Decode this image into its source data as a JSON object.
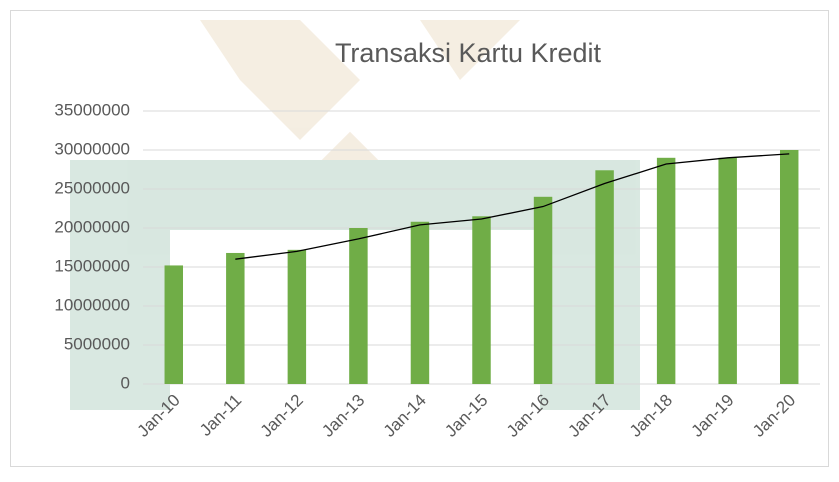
{
  "chart_data": {
    "type": "bar",
    "title": "Transaksi Kartu Kredit",
    "categories": [
      "Jan-10",
      "Jan-11",
      "Jan-12",
      "Jan-13",
      "Jan-14",
      "Jan-15",
      "Jan-16",
      "Jan-17",
      "Jan-18",
      "Jan-19",
      "Jan-20"
    ],
    "values": [
      15200000,
      16800000,
      17200000,
      20000000,
      20800000,
      21500000,
      24000000,
      27400000,
      29000000,
      29000000,
      30000000
    ],
    "color": "#70ad47",
    "trendline": {
      "values": [
        null,
        16000000,
        17000000,
        18600000,
        20400000,
        21150000,
        22750000,
        25700000,
        28200000,
        29000000,
        29500000
      ],
      "color": "#000000"
    },
    "ylim": [
      0,
      35000000
    ],
    "yticks": [
      0,
      5000000,
      10000000,
      15000000,
      20000000,
      25000000,
      30000000,
      35000000
    ],
    "grid": true
  }
}
